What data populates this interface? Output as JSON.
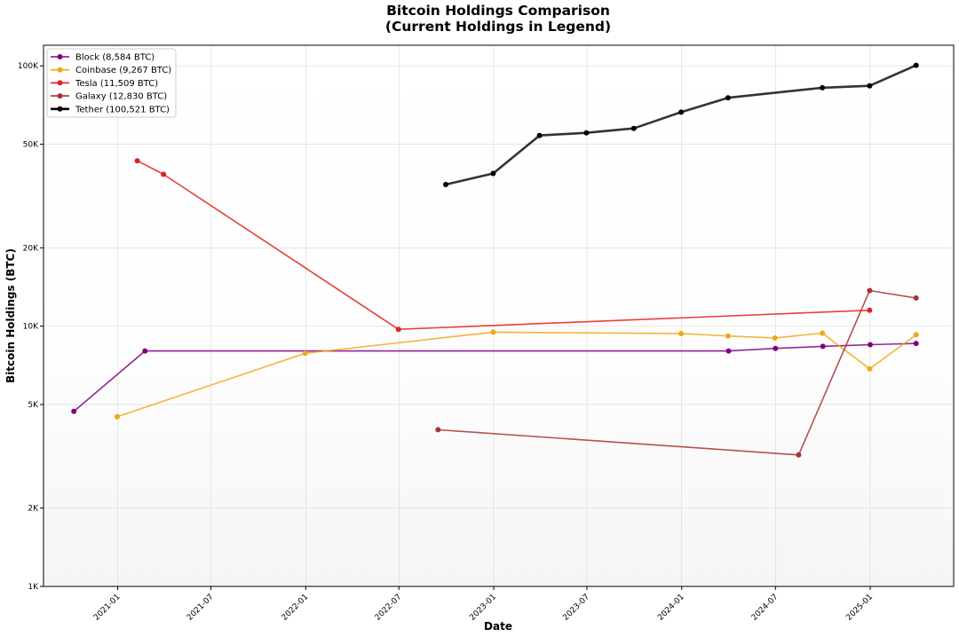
{
  "chart_data": {
    "type": "line",
    "title": "Bitcoin Holdings Comparison",
    "subtitle": "(Current Holdings in Legend)",
    "xlabel": "Date",
    "ylabel": "Bitcoin Holdings (BTC)",
    "y_scale": "log",
    "ylim": [
      1000,
      120000
    ],
    "xlim": [
      "2020-08-10",
      "2025-06-12"
    ],
    "grid": true,
    "legend_position": "top-left",
    "x_ticks": [
      "2021-01",
      "2021-07",
      "2022-01",
      "2022-07",
      "2023-01",
      "2023-07",
      "2024-01",
      "2024-07",
      "2025-01"
    ],
    "x_tick_dates": [
      "2021-01-01",
      "2021-07-01",
      "2022-01-01",
      "2022-07-01",
      "2023-01-01",
      "2023-07-01",
      "2024-01-01",
      "2024-07-01",
      "2025-01-01"
    ],
    "y_ticks": [
      "1K",
      "2K",
      "5K",
      "10K",
      "20K",
      "50K",
      "100K"
    ],
    "y_tick_values": [
      1000,
      2000,
      5000,
      10000,
      20000,
      50000,
      100000
    ],
    "series": [
      {
        "name": "Block (8,584 BTC)",
        "color": "#800080",
        "points": [
          {
            "x": "2020-10-08",
            "y": 4709
          },
          {
            "x": "2021-02-23",
            "y": 8027
          },
          {
            "x": "2024-04-01",
            "y": 8027
          },
          {
            "x": "2024-07-01",
            "y": 8211
          },
          {
            "x": "2024-10-01",
            "y": 8363
          },
          {
            "x": "2025-01-01",
            "y": 8485
          },
          {
            "x": "2025-03-31",
            "y": 8584
          }
        ]
      },
      {
        "name": "Coinbase (9,267 BTC)",
        "color": "#f0a818",
        "points": [
          {
            "x": "2020-12-31",
            "y": 4483
          },
          {
            "x": "2021-12-31",
            "y": 7868
          },
          {
            "x": "2022-12-31",
            "y": 9480
          },
          {
            "x": "2023-12-31",
            "y": 9360
          },
          {
            "x": "2024-03-31",
            "y": 9170
          },
          {
            "x": "2024-06-30",
            "y": 9000
          },
          {
            "x": "2024-09-30",
            "y": 9400
          },
          {
            "x": "2024-12-31",
            "y": 6850
          },
          {
            "x": "2025-03-31",
            "y": 9267
          }
        ]
      },
      {
        "name": "Tesla (11,509 BTC)",
        "color": "#e02020",
        "points": [
          {
            "x": "2021-02-08",
            "y": 43200
          },
          {
            "x": "2021-03-31",
            "y": 38300
          },
          {
            "x": "2022-06-30",
            "y": 9720
          },
          {
            "x": "2024-12-31",
            "y": 11509
          }
        ]
      },
      {
        "name": "Galaxy (12,830 BTC)",
        "color": "#a83232",
        "points": [
          {
            "x": "2022-09-15",
            "y": 4000
          },
          {
            "x": "2024-08-15",
            "y": 3200
          },
          {
            "x": "2024-12-31",
            "y": 13700
          },
          {
            "x": "2025-03-31",
            "y": 12830
          }
        ]
      },
      {
        "name": "Tether (100,521 BTC)",
        "color": "#000000",
        "points": [
          {
            "x": "2022-09-30",
            "y": 35000
          },
          {
            "x": "2022-12-31",
            "y": 38600
          },
          {
            "x": "2023-03-31",
            "y": 54000
          },
          {
            "x": "2023-06-30",
            "y": 55300
          },
          {
            "x": "2023-09-30",
            "y": 57500
          },
          {
            "x": "2023-12-31",
            "y": 66400
          },
          {
            "x": "2024-03-31",
            "y": 75400
          },
          {
            "x": "2024-09-30",
            "y": 82400
          },
          {
            "x": "2024-12-31",
            "y": 83800
          },
          {
            "x": "2025-03-31",
            "y": 100521
          }
        ]
      }
    ]
  }
}
